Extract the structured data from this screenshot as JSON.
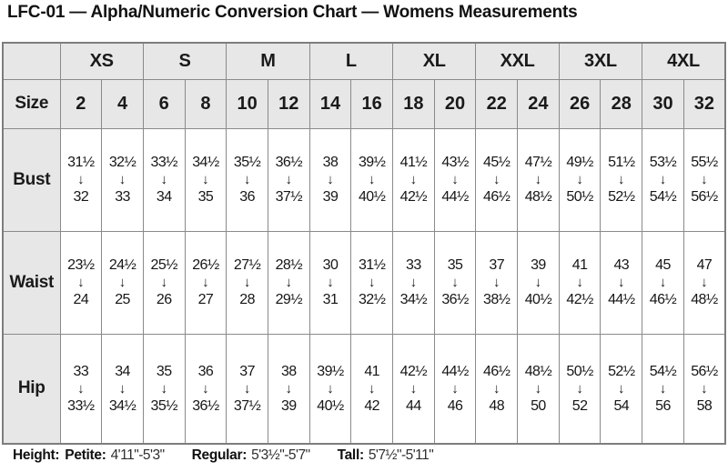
{
  "title": "LFC-01 — Alpha/Numeric Conversion Chart — Womens Measurements",
  "colors": {
    "header_bg": "#e7e7e7",
    "border": "#8a8a8a",
    "text": "#1a1a1a"
  },
  "icons": {
    "down_arrow": "↓"
  },
  "table": {
    "alpha_sizes": [
      "XS",
      "S",
      "M",
      "L",
      "XL",
      "XXL",
      "3XL",
      "4XL"
    ],
    "size_label": "Size",
    "sizes": [
      "2",
      "4",
      "6",
      "8",
      "10",
      "12",
      "14",
      "16",
      "18",
      "20",
      "22",
      "24",
      "26",
      "28",
      "30",
      "32"
    ],
    "rows": [
      {
        "label": "Bust",
        "cells": [
          {
            "from": "31½",
            "to": "32"
          },
          {
            "from": "32½",
            "to": "33"
          },
          {
            "from": "33½",
            "to": "34"
          },
          {
            "from": "34½",
            "to": "35"
          },
          {
            "from": "35½",
            "to": "36"
          },
          {
            "from": "36½",
            "to": "37½"
          },
          {
            "from": "38",
            "to": "39"
          },
          {
            "from": "39½",
            "to": "40½"
          },
          {
            "from": "41½",
            "to": "42½"
          },
          {
            "from": "43½",
            "to": "44½"
          },
          {
            "from": "45½",
            "to": "46½"
          },
          {
            "from": "47½",
            "to": "48½"
          },
          {
            "from": "49½",
            "to": "50½"
          },
          {
            "from": "51½",
            "to": "52½"
          },
          {
            "from": "53½",
            "to": "54½"
          },
          {
            "from": "55½",
            "to": "56½"
          }
        ]
      },
      {
        "label": "Waist",
        "cells": [
          {
            "from": "23½",
            "to": "24"
          },
          {
            "from": "24½",
            "to": "25"
          },
          {
            "from": "25½",
            "to": "26"
          },
          {
            "from": "26½",
            "to": "27"
          },
          {
            "from": "27½",
            "to": "28"
          },
          {
            "from": "28½",
            "to": "29½"
          },
          {
            "from": "30",
            "to": "31"
          },
          {
            "from": "31½",
            "to": "32½"
          },
          {
            "from": "33",
            "to": "34½"
          },
          {
            "from": "35",
            "to": "36½"
          },
          {
            "from": "37",
            "to": "38½"
          },
          {
            "from": "39",
            "to": "40½"
          },
          {
            "from": "41",
            "to": "42½"
          },
          {
            "from": "43",
            "to": "44½"
          },
          {
            "from": "45",
            "to": "46½"
          },
          {
            "from": "47",
            "to": "48½"
          }
        ]
      },
      {
        "label": "Hip",
        "cells": [
          {
            "from": "33",
            "to": "33½"
          },
          {
            "from": "34",
            "to": "34½"
          },
          {
            "from": "35",
            "to": "35½"
          },
          {
            "from": "36",
            "to": "36½"
          },
          {
            "from": "37",
            "to": "37½"
          },
          {
            "from": "38",
            "to": "39"
          },
          {
            "from": "39½",
            "to": "40½"
          },
          {
            "from": "41",
            "to": "42"
          },
          {
            "from": "42½",
            "to": "44"
          },
          {
            "from": "44½",
            "to": "46"
          },
          {
            "from": "46½",
            "to": "48"
          },
          {
            "from": "48½",
            "to": "50"
          },
          {
            "from": "50½",
            "to": "52"
          },
          {
            "from": "52½",
            "to": "54"
          },
          {
            "from": "54½",
            "to": "56"
          },
          {
            "from": "56½",
            "to": "58"
          }
        ]
      }
    ]
  },
  "footer": {
    "height_label": "Height:",
    "entries": [
      {
        "label": "Petite:",
        "value": "4'11\"-5'3\""
      },
      {
        "label": "Regular:",
        "value": "5'3½\"-5'7\""
      },
      {
        "label": "Tall:",
        "value": "5'7½\"-5'11\""
      }
    ]
  }
}
